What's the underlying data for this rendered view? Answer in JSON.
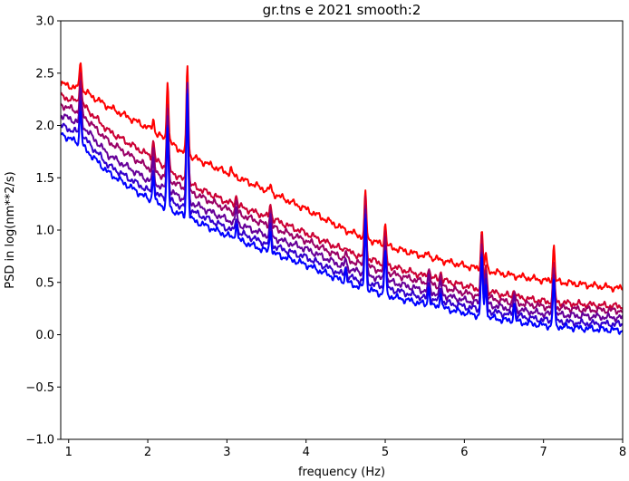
{
  "chart_data": {
    "type": "line",
    "title": "gr.tns e 2021 smooth:2",
    "xlabel": "frequency (Hz)",
    "ylabel": "PSD in log(nm**2/s)",
    "xlim": [
      0.9,
      8.0
    ],
    "ylim": [
      -1.0,
      3.0
    ],
    "x_ticks": [
      1,
      2,
      3,
      4,
      5,
      6,
      7,
      8
    ],
    "y_ticks": [
      -1.0,
      -0.5,
      0.0,
      0.5,
      1.0,
      1.5,
      2.0,
      2.5,
      3.0
    ],
    "grid": false,
    "legend": "none",
    "series": [
      {
        "color": "#ff0000",
        "base": [
          [
            0.9,
            2.4
          ],
          [
            1.15,
            2.35
          ],
          [
            1.5,
            2.18
          ],
          [
            2.0,
            1.98
          ],
          [
            2.5,
            1.72
          ],
          [
            3.0,
            1.55
          ],
          [
            3.5,
            1.38
          ],
          [
            4.0,
            1.2
          ],
          [
            4.5,
            1.0
          ],
          [
            5.0,
            0.85
          ],
          [
            5.5,
            0.75
          ],
          [
            6.0,
            0.66
          ],
          [
            6.5,
            0.58
          ],
          [
            7.0,
            0.52
          ],
          [
            7.5,
            0.48
          ],
          [
            8.0,
            0.44
          ]
        ],
        "peaks": [
          [
            1.15,
            0.28
          ],
          [
            2.07,
            0.12
          ],
          [
            2.25,
            0.58
          ],
          [
            2.5,
            0.85
          ],
          [
            3.05,
            0.05
          ],
          [
            3.55,
            0.06
          ],
          [
            4.75,
            0.42
          ],
          [
            5.0,
            0.2
          ],
          [
            5.55,
            0.05
          ],
          [
            6.22,
            0.38
          ],
          [
            6.27,
            0.15
          ],
          [
            7.13,
            0.34
          ]
        ]
      },
      {
        "color": "#cc0033",
        "base": [
          [
            0.9,
            2.28
          ],
          [
            1.15,
            2.22
          ],
          [
            1.5,
            1.95
          ],
          [
            2.0,
            1.72
          ],
          [
            2.5,
            1.45
          ],
          [
            3.0,
            1.27
          ],
          [
            3.5,
            1.13
          ],
          [
            4.0,
            0.97
          ],
          [
            4.5,
            0.8
          ],
          [
            5.0,
            0.67
          ],
          [
            5.5,
            0.56
          ],
          [
            6.0,
            0.47
          ],
          [
            6.5,
            0.38
          ],
          [
            7.0,
            0.32
          ],
          [
            7.5,
            0.29
          ],
          [
            8.0,
            0.27
          ]
        ],
        "peaks": [
          [
            1.15,
            0.3
          ],
          [
            2.07,
            0.18
          ],
          [
            2.25,
            0.62
          ],
          [
            2.5,
            1.0
          ],
          [
            3.12,
            0.1
          ],
          [
            3.55,
            0.14
          ],
          [
            4.5,
            0.06
          ],
          [
            4.75,
            0.6
          ],
          [
            5.0,
            0.32
          ],
          [
            5.55,
            0.1
          ],
          [
            5.7,
            0.08
          ],
          [
            6.22,
            0.5
          ],
          [
            6.27,
            0.25
          ],
          [
            6.63,
            0.08
          ],
          [
            7.13,
            0.36
          ]
        ]
      },
      {
        "color": "#990066",
        "base": [
          [
            0.9,
            2.2
          ],
          [
            1.15,
            2.12
          ],
          [
            1.5,
            1.85
          ],
          [
            2.0,
            1.6
          ],
          [
            2.5,
            1.38
          ],
          [
            3.0,
            1.2
          ],
          [
            3.5,
            1.05
          ],
          [
            4.0,
            0.9
          ],
          [
            4.5,
            0.72
          ],
          [
            5.0,
            0.6
          ],
          [
            5.5,
            0.5
          ],
          [
            6.0,
            0.4
          ],
          [
            6.5,
            0.32
          ],
          [
            7.0,
            0.27
          ],
          [
            7.5,
            0.24
          ],
          [
            8.0,
            0.23
          ]
        ],
        "peaks": [
          [
            1.15,
            0.3
          ],
          [
            2.07,
            0.2
          ],
          [
            2.25,
            0.66
          ],
          [
            2.5,
            1.02
          ],
          [
            3.12,
            0.12
          ],
          [
            3.55,
            0.16
          ],
          [
            4.5,
            0.07
          ],
          [
            4.75,
            0.6
          ],
          [
            5.0,
            0.34
          ],
          [
            5.55,
            0.12
          ],
          [
            5.7,
            0.1
          ],
          [
            6.22,
            0.5
          ],
          [
            6.27,
            0.26
          ],
          [
            6.63,
            0.1
          ],
          [
            7.13,
            0.38
          ]
        ]
      },
      {
        "color": "#660099",
        "base": [
          [
            0.9,
            2.1
          ],
          [
            1.15,
            2.02
          ],
          [
            1.5,
            1.72
          ],
          [
            2.0,
            1.48
          ],
          [
            2.5,
            1.28
          ],
          [
            3.0,
            1.1
          ],
          [
            3.5,
            0.95
          ],
          [
            4.0,
            0.82
          ],
          [
            4.5,
            0.64
          ],
          [
            5.0,
            0.52
          ],
          [
            5.5,
            0.42
          ],
          [
            6.0,
            0.33
          ],
          [
            6.5,
            0.26
          ],
          [
            7.0,
            0.2
          ],
          [
            7.5,
            0.18
          ],
          [
            8.0,
            0.16
          ]
        ],
        "peaks": [
          [
            1.15,
            0.32
          ],
          [
            2.07,
            0.22
          ],
          [
            2.25,
            0.7
          ],
          [
            2.5,
            1.1
          ],
          [
            3.12,
            0.14
          ],
          [
            3.55,
            0.18
          ],
          [
            4.5,
            0.08
          ],
          [
            4.75,
            0.62
          ],
          [
            5.0,
            0.36
          ],
          [
            5.55,
            0.14
          ],
          [
            5.7,
            0.12
          ],
          [
            6.22,
            0.52
          ],
          [
            6.27,
            0.28
          ],
          [
            6.63,
            0.12
          ],
          [
            7.13,
            0.4
          ]
        ]
      },
      {
        "color": "#3300cc",
        "base": [
          [
            0.9,
            2.0
          ],
          [
            1.15,
            1.92
          ],
          [
            1.5,
            1.62
          ],
          [
            2.0,
            1.38
          ],
          [
            2.5,
            1.2
          ],
          [
            3.0,
            1.02
          ],
          [
            3.5,
            0.87
          ],
          [
            4.0,
            0.74
          ],
          [
            4.5,
            0.56
          ],
          [
            5.0,
            0.45
          ],
          [
            5.5,
            0.35
          ],
          [
            6.0,
            0.27
          ],
          [
            6.5,
            0.2
          ],
          [
            7.0,
            0.14
          ],
          [
            7.5,
            0.11
          ],
          [
            8.0,
            0.1
          ]
        ],
        "peaks": [
          [
            1.15,
            0.32
          ],
          [
            2.07,
            0.24
          ],
          [
            2.25,
            0.72
          ],
          [
            2.5,
            1.15
          ],
          [
            3.12,
            0.15
          ],
          [
            3.55,
            0.2
          ],
          [
            4.5,
            0.1
          ],
          [
            4.75,
            0.64
          ],
          [
            5.0,
            0.38
          ],
          [
            5.55,
            0.16
          ],
          [
            5.7,
            0.14
          ],
          [
            6.22,
            0.55
          ],
          [
            6.27,
            0.3
          ],
          [
            6.63,
            0.14
          ],
          [
            7.13,
            0.42
          ]
        ]
      },
      {
        "color": "#0000ff",
        "base": [
          [
            0.9,
            1.92
          ],
          [
            1.15,
            1.82
          ],
          [
            1.5,
            1.55
          ],
          [
            2.0,
            1.3
          ],
          [
            2.5,
            1.12
          ],
          [
            3.0,
            0.95
          ],
          [
            3.5,
            0.8
          ],
          [
            4.0,
            0.67
          ],
          [
            4.5,
            0.5
          ],
          [
            5.0,
            0.38
          ],
          [
            5.5,
            0.29
          ],
          [
            6.0,
            0.21
          ],
          [
            6.5,
            0.14
          ],
          [
            7.0,
            0.09
          ],
          [
            7.5,
            0.06
          ],
          [
            8.0,
            0.04
          ]
        ],
        "peaks": [
          [
            1.15,
            0.34
          ],
          [
            2.07,
            0.26
          ],
          [
            2.25,
            0.75
          ],
          [
            2.5,
            1.2
          ],
          [
            3.12,
            0.16
          ],
          [
            3.55,
            0.22
          ],
          [
            4.5,
            0.12
          ],
          [
            4.75,
            0.66
          ],
          [
            5.0,
            0.4
          ],
          [
            5.55,
            0.18
          ],
          [
            5.7,
            0.16
          ],
          [
            6.22,
            0.58
          ],
          [
            6.27,
            0.32
          ],
          [
            6.63,
            0.16
          ],
          [
            7.13,
            0.44
          ]
        ]
      }
    ]
  }
}
